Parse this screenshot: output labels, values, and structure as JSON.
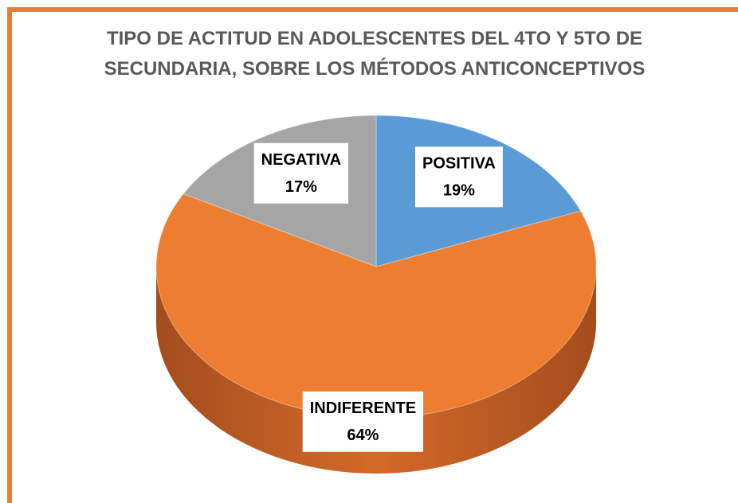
{
  "chart_data": {
    "type": "pie",
    "title": "TIPO DE ACTITUD EN ADOLESCENTES DEL 4TO Y 5TO DE SECUNDARIA, SOBRE LOS MÉTODOS ANTICONCEPTIVOS",
    "categories": [
      "POSITIVA",
      "INDIFERENTE",
      "NEGATIVA"
    ],
    "values": [
      19,
      64,
      17
    ],
    "value_labels": [
      "19%",
      "64%",
      "17%"
    ],
    "colors": [
      "#5b9bd5",
      "#ed7d31",
      "#a5a5a5"
    ]
  }
}
